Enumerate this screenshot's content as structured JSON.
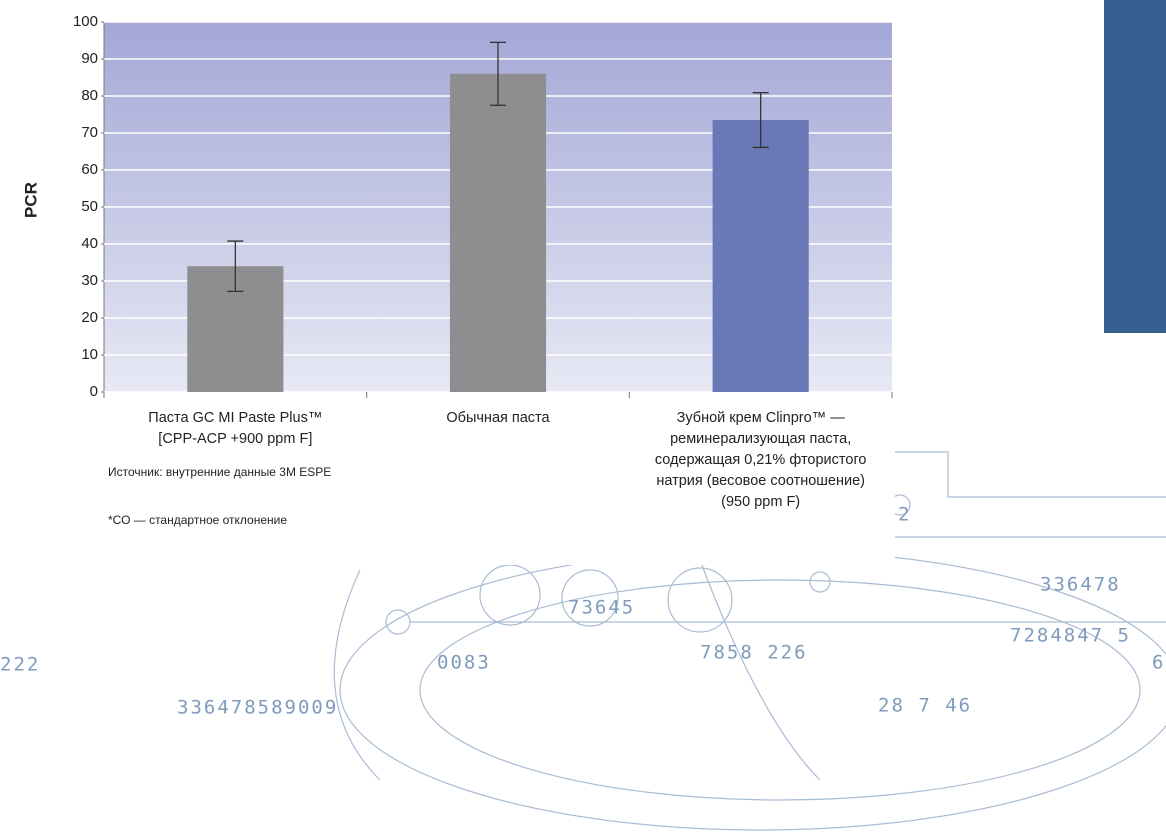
{
  "chart_data": {
    "type": "bar",
    "y_label": "PCR",
    "categories": [
      "Паста GC MI Paste Plus™\n[CPP-ACP +900 ppm F]",
      "Обычная паста",
      "Зубной крем Clinpro™ —\nреминерализующая паста,\nсодержащая 0,21% фтористого\nнатрия (весовое соотношение)\n(950 ppm F)"
    ],
    "values": [
      34,
      86,
      73.5
    ],
    "errors": [
      6.8,
      8.5,
      7.4
    ],
    "colors": [
      "#8e8e91",
      "#8e8e91",
      "#6b78b8"
    ],
    "ylim": [
      0,
      100
    ],
    "yticks": [
      0,
      10,
      20,
      30,
      40,
      50,
      60,
      70,
      80,
      90,
      100
    ],
    "grid": true,
    "notes": [
      "Источник: внутренние данные 3M ESPE",
      "*СО — стандартное отклонение"
    ]
  },
  "decoration": {
    "texts": [
      "336478",
      "73645",
      "0083",
      "7858 226",
      "7284847 5",
      "222",
      "336478589009",
      "28 7 46",
      "6",
      "2"
    ]
  }
}
